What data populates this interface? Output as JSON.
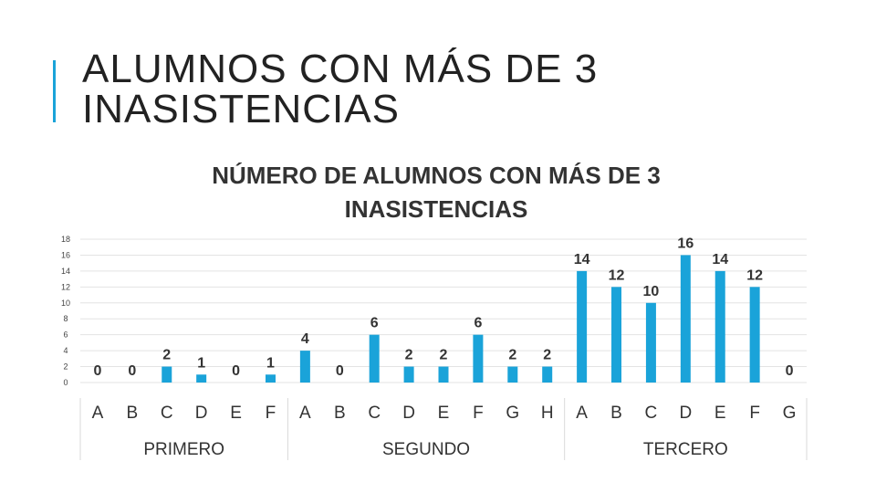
{
  "slide": {
    "title_line1": "ALUMNOS CON MÁS DE 3",
    "title_line2": "INASISTENCIAS"
  },
  "chart_data": {
    "type": "bar",
    "title_line1": "NÚMERO DE ALUMNOS CON MÁS DE 3",
    "title_line2": "INASISTENCIAS",
    "ylim": [
      0,
      18
    ],
    "yticks": [
      0,
      2,
      4,
      6,
      8,
      10,
      12,
      14,
      16,
      18
    ],
    "grid": true,
    "bar_color": "#1aa3d9",
    "groups": [
      {
        "name": "PRIMERO",
        "categories": [
          "A",
          "B",
          "C",
          "D",
          "E",
          "F"
        ],
        "values": [
          0,
          0,
          2,
          1,
          0,
          1
        ]
      },
      {
        "name": "SEGUNDO",
        "categories": [
          "A",
          "B",
          "C",
          "D",
          "E",
          "F",
          "G",
          "H"
        ],
        "values": [
          4,
          0,
          6,
          2,
          2,
          6,
          2,
          2
        ]
      },
      {
        "name": "TERCERO",
        "categories": [
          "A",
          "B",
          "C",
          "D",
          "E",
          "F",
          "G"
        ],
        "values": [
          14,
          12,
          10,
          16,
          14,
          12,
          0
        ]
      }
    ]
  }
}
